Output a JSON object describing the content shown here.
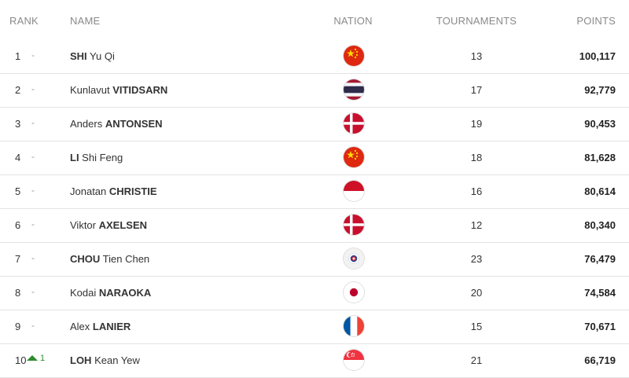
{
  "header": {
    "rank": "RANK",
    "name": "NAME",
    "nation": "NATION",
    "tournaments": "TOURNAMENTS",
    "points": "POINTS"
  },
  "rows": [
    {
      "rank": "1",
      "change": "-",
      "name_first_part": "SHI",
      "name_second_part": " Yu Qi",
      "surname_first": true,
      "flag": "china-flag",
      "tournaments": "13",
      "points": "100,117"
    },
    {
      "rank": "2",
      "change": "-",
      "name_first_part": "Kunlavut ",
      "name_second_part": "VITIDSARN",
      "surname_first": false,
      "flag": "thailand-flag",
      "tournaments": "17",
      "points": "92,779"
    },
    {
      "rank": "3",
      "change": "-",
      "name_first_part": "Anders ",
      "name_second_part": "ANTONSEN",
      "surname_first": false,
      "flag": "denmark-flag",
      "tournaments": "19",
      "points": "90,453"
    },
    {
      "rank": "4",
      "change": "-",
      "name_first_part": "LI",
      "name_second_part": " Shi Feng",
      "surname_first": true,
      "flag": "china-flag",
      "tournaments": "18",
      "points": "81,628"
    },
    {
      "rank": "5",
      "change": "-",
      "name_first_part": "Jonatan ",
      "name_second_part": "CHRISTIE",
      "surname_first": false,
      "flag": "indonesia-flag",
      "tournaments": "16",
      "points": "80,614"
    },
    {
      "rank": "6",
      "change": "-",
      "name_first_part": "Viktor ",
      "name_second_part": "AXELSEN",
      "surname_first": false,
      "flag": "denmark-flag",
      "tournaments": "12",
      "points": "80,340"
    },
    {
      "rank": "7",
      "change": "-",
      "name_first_part": "CHOU",
      "name_second_part": " Tien Chen",
      "surname_first": true,
      "flag": "chinese-taipei-flag",
      "tournaments": "23",
      "points": "76,479"
    },
    {
      "rank": "8",
      "change": "-",
      "name_first_part": "Kodai ",
      "name_second_part": "NARAOKA",
      "surname_first": false,
      "flag": "japan-flag",
      "tournaments": "20",
      "points": "74,584"
    },
    {
      "rank": "9",
      "change": "-",
      "name_first_part": "Alex ",
      "name_second_part": "LANIER",
      "surname_first": false,
      "flag": "france-flag",
      "tournaments": "15",
      "points": "70,671"
    },
    {
      "rank": "10",
      "change": "1",
      "change_direction": "up",
      "name_first_part": "LOH",
      "name_second_part": " Kean Yew",
      "surname_first": true,
      "flag": "singapore-flag",
      "tournaments": "21",
      "points": "66,719"
    }
  ],
  "colors": {
    "header_text": "#8a8a8a",
    "divider": "#e3e3e3",
    "rank_up": "#2e8b2e"
  }
}
